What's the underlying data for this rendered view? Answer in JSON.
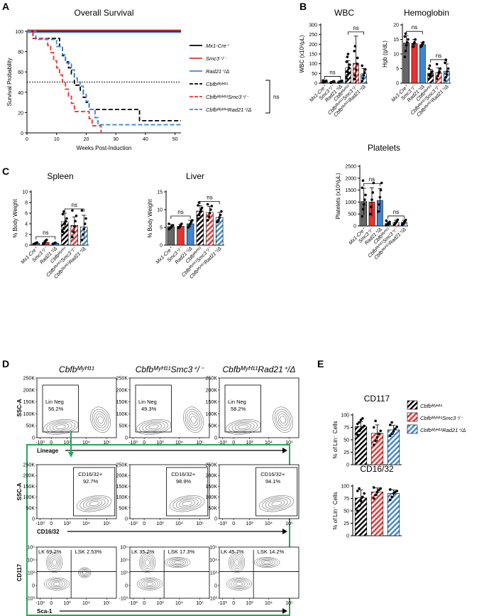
{
  "colors": {
    "black": "#000000",
    "red": "#e8322e",
    "blue": "#3f86d0",
    "gray": "#666666",
    "frame": "#2aa55a"
  },
  "panels": {
    "A": "A",
    "B": "B",
    "C": "C",
    "D": "D",
    "E": "E"
  },
  "chart_data": [
    {
      "id": "A",
      "type": "line",
      "title": "Overall Survival",
      "xlabel": "Weeks Post-Induction",
      "ylabel": "Survival Probability",
      "xlim": [
        0,
        52
      ],
      "ylim": [
        0,
        100
      ],
      "xticks": [
        "0",
        "10",
        "20",
        "30",
        "40",
        "50"
      ],
      "yticks": [
        "0",
        "20",
        "40",
        "60",
        "80",
        "100"
      ],
      "reference_line": 50,
      "legend": [
        "Mx1-Cre⁺",
        "Smc3⁺/⁻",
        "Rad21⁺/Δ",
        "Cbfbᴹʸᴴ¹¹",
        "Cbfbᴹʸᴴ¹¹Smc3⁺/⁻",
        "Cbfbᴹʸᴴ¹¹Rad21⁺/Δ"
      ],
      "annotation": "ns",
      "series": [
        {
          "name": "Mx1-Cre⁺",
          "x": [
            0,
            52
          ],
          "y": [
            100,
            100
          ]
        },
        {
          "name": "Smc3⁺/⁻",
          "x": [
            0,
            52
          ],
          "y": [
            101,
            101
          ]
        },
        {
          "name": "Rad21⁺/Δ",
          "x": [
            0,
            52
          ],
          "y": [
            99,
            99
          ]
        },
        {
          "name": "Cbfbᴹʸᴴ¹¹",
          "x": [
            0,
            2,
            5,
            8,
            10,
            11,
            12,
            13,
            14,
            15,
            16,
            18,
            19,
            20,
            21,
            22,
            27,
            37,
            38,
            52
          ],
          "y": [
            100,
            93,
            93,
            93,
            93,
            85,
            76,
            70,
            64,
            58,
            47,
            42,
            35,
            30,
            23,
            23,
            23,
            23,
            12,
            12
          ]
        },
        {
          "name": "Cbfbᴹʸᴴ¹¹Smc3⁺/⁻",
          "x": [
            0,
            2,
            3,
            7,
            8,
            9,
            10,
            11,
            12,
            13,
            14,
            15,
            16,
            17,
            19,
            21,
            22,
            23,
            24,
            25
          ],
          "y": [
            100,
            93,
            93,
            86,
            79,
            71,
            64,
            57,
            50,
            43,
            36,
            29,
            21,
            21,
            21,
            14,
            7,
            7,
            7,
            0
          ]
        },
        {
          "name": "Cbfbᴹʸᴴ¹¹Rad21⁺/Δ",
          "x": [
            0,
            3,
            7,
            10,
            12,
            13,
            14,
            15,
            16,
            17,
            18,
            19,
            20,
            21,
            22,
            23,
            24,
            25,
            52
          ],
          "y": [
            100,
            92,
            92,
            85,
            77,
            69,
            69,
            62,
            54,
            50,
            46,
            38,
            31,
            23,
            23,
            15,
            8,
            8,
            8
          ]
        }
      ]
    },
    {
      "id": "B-WBC",
      "type": "bar",
      "title": "WBC",
      "ylabel": "WBC (x10³/μL)",
      "ylim": [
        0,
        300
      ],
      "yticks": [
        "0",
        "50",
        "100",
        "150",
        "200",
        "250",
        "300"
      ],
      "categories": [
        "Mx1-Cre⁺",
        "Smc3⁺/⁻",
        "Rad21⁺/Δ",
        "Cbfbᴹʸᴴ¹¹",
        "Cbfbᴹʸᴴ¹¹Smc3⁺/⁻",
        "Cbfbᴹʸᴴ¹¹Rad21⁺/Δ"
      ],
      "values": [
        8,
        6,
        8,
        78,
        102,
        48
      ],
      "errors": [
        5,
        3,
        4,
        38,
        140,
        28
      ],
      "points": [
        [
          3,
          5,
          8,
          10,
          12,
          14
        ],
        [
          2,
          4,
          6,
          8,
          9
        ],
        [
          3,
          5,
          8,
          10,
          12
        ],
        [
          25,
          40,
          55,
          80,
          95,
          110,
          135,
          150
        ],
        [
          20,
          40,
          70,
          100,
          130,
          165,
          190
        ],
        [
          10,
          25,
          40,
          55,
          70,
          90
        ]
      ],
      "significance": [
        {
          "from": 0,
          "to": 2,
          "label": "ns"
        },
        {
          "from": 3,
          "to": 5,
          "label": "ns"
        }
      ]
    },
    {
      "id": "B-Hgb",
      "type": "bar",
      "title": "Hemoglobin",
      "ylabel": "Hgb (g/dL)",
      "ylim": [
        0,
        20
      ],
      "yticks": [
        "0",
        "5",
        "10",
        "15",
        "20"
      ],
      "categories": [
        "Mx1-Cre⁺",
        "Smc3⁺/⁻",
        "Rad21⁺/Δ",
        "Cbfbᴹʸᴴ¹¹",
        "Cbfbᴹʸᴴ¹¹Smc3⁺/⁻",
        "Cbfbᴹʸᴴ¹¹Rad21⁺/Δ"
      ],
      "values": [
        13.8,
        13.6,
        13.2,
        3.4,
        3.6,
        4.1
      ],
      "errors": [
        2.5,
        1.4,
        0.8,
        1.3,
        1.6,
        2.5
      ],
      "points": [
        [
          9,
          11,
          13,
          14,
          15,
          16,
          17
        ],
        [
          12.5,
          13.5,
          14,
          15
        ],
        [
          12.5,
          13,
          13.5,
          14
        ],
        [
          1.5,
          2.5,
          3,
          3.5,
          4,
          5,
          6
        ],
        [
          1.5,
          2.5,
          3.5,
          4,
          5,
          6.5
        ],
        [
          1,
          2,
          3,
          4,
          5,
          7,
          8
        ]
      ],
      "significance": [
        {
          "from": 0,
          "to": 2,
          "label": "ns"
        },
        {
          "from": 3,
          "to": 5,
          "label": "ns"
        }
      ]
    },
    {
      "id": "B-Platelets",
      "type": "bar",
      "title": "Platelets",
      "ylabel": "Platelets (x10³/μL)",
      "ylim": [
        0,
        2500
      ],
      "yticks": [
        "0",
        "500",
        "1000",
        "1500",
        "2000",
        "2500"
      ],
      "categories": [
        "Mx1-Cre⁺",
        "Smc3⁺/⁻",
        "Rad21⁺/Δ",
        "Cbfbᴹʸᴴ¹¹",
        "Cbfbᴹʸᴴ¹¹Smc3⁺/⁻",
        "Cbfbᴹʸᴴ¹¹Rad21⁺/Δ"
      ],
      "values": [
        1020,
        1000,
        1070,
        100,
        150,
        150
      ],
      "errors": [
        560,
        600,
        500,
        60,
        90,
        90
      ],
      "points": [
        [
          400,
          700,
          900,
          1100,
          1300,
          1600,
          1900
        ],
        [
          500,
          800,
          1100,
          1400,
          1800
        ],
        [
          600,
          900,
          1200,
          1500,
          1800
        ],
        [
          30,
          60,
          90,
          130,
          170,
          220
        ],
        [
          50,
          100,
          150,
          200,
          260
        ],
        [
          60,
          110,
          150,
          200,
          250
        ]
      ],
      "significance": [
        {
          "from": 0,
          "to": 2,
          "label": "ns"
        },
        {
          "from": 3,
          "to": 5,
          "label": "ns"
        }
      ]
    },
    {
      "id": "C-Spleen",
      "type": "bar",
      "title": "Spleen",
      "ylabel": "% Body Weight",
      "ylim": [
        0,
        10
      ],
      "yticks": [
        "0",
        "2",
        "4",
        "6",
        "8",
        "10"
      ],
      "categories": [
        "Mx1-Cre⁺",
        "Smc3⁺/⁻",
        "Rad21⁺/Δ",
        "Cbfbᴹʸᴴ¹¹",
        "Cbfbᴹʸᴴ¹¹Smc3⁺/⁻",
        "Cbfbᴹʸᴴ¹¹Rad21⁺/Δ"
      ],
      "values": [
        0.35,
        0.5,
        0.35,
        4.4,
        3.7,
        3.4
      ],
      "errors": [
        0.1,
        0.3,
        0.1,
        1.6,
        1.6,
        2.2
      ],
      "points": [
        [
          0.2,
          0.3,
          0.4,
          0.5
        ],
        [
          0.2,
          0.5,
          0.8,
          1.0
        ],
        [
          0.25,
          0.35,
          0.45
        ],
        [
          2.5,
          3.2,
          4,
          4.5,
          5,
          5.8,
          6.3
        ],
        [
          1.5,
          2.5,
          3.5,
          4.5,
          5.5,
          6.5
        ],
        [
          1,
          2,
          3,
          4,
          5,
          6.5
        ]
      ],
      "significance": [
        {
          "from": 0,
          "to": 2,
          "label": "ns"
        },
        {
          "from": 3,
          "to": 5,
          "label": "ns"
        }
      ]
    },
    {
      "id": "C-Liver",
      "type": "bar",
      "title": "Liver",
      "ylabel": "% Body Weight",
      "ylim": [
        0,
        15
      ],
      "yticks": [
        "0",
        "5",
        "10",
        "15"
      ],
      "categories": [
        "Mx1-Cre⁺",
        "Smc3⁺/⁻",
        "Rad21⁺/Δ",
        "Cbfbᴹʸᴴ¹¹",
        "Cbfbᴹʸᴴ¹¹Smc3⁺/⁻",
        "Cbfbᴹʸᴴ¹¹Rad21⁺/Δ"
      ],
      "values": [
        5.2,
        5.3,
        6.0,
        9.6,
        9.2,
        7.8
      ],
      "errors": [
        0.6,
        0.6,
        1.0,
        1.5,
        1.7,
        1.4
      ],
      "points": [
        [
          4.5,
          4.8,
          5,
          5.3,
          5.6,
          6
        ],
        [
          4.8,
          5.2,
          5.5,
          6
        ],
        [
          5,
          5.5,
          6,
          6.5,
          7
        ],
        [
          7.5,
          8.5,
          9.3,
          10,
          10.5,
          11.2,
          12
        ],
        [
          7,
          8,
          9,
          10,
          11,
          11.5
        ],
        [
          6.5,
          7,
          7.8,
          8.5,
          9.5
        ]
      ],
      "significance": [
        {
          "from": 0,
          "to": 2,
          "label": "ns"
        },
        {
          "from": 3,
          "to": 5,
          "label": "ns"
        }
      ]
    },
    {
      "id": "E-CD117",
      "type": "bar",
      "title": "CD117",
      "ylabel": "% of Lin⁻ Cells",
      "ylim": [
        0,
        100
      ],
      "yticks": [
        "0",
        "25",
        "50",
        "75",
        "100"
      ],
      "categories": [
        "Cbfbᴹʸᴴ¹¹",
        "Cbfbᴹʸᴴ¹¹Smc3⁺/⁻",
        "Cbfbᴹʸᴴ¹¹Rad21⁺/Δ"
      ],
      "values": [
        77,
        63,
        70
      ],
      "errors": [
        10,
        17,
        9
      ],
      "points": [
        [
          60,
          68,
          72,
          75,
          78,
          82,
          85,
          90,
          93
        ],
        [
          40,
          48,
          55,
          62,
          68,
          75,
          88
        ],
        [
          58,
          62,
          67,
          72,
          76,
          80,
          85
        ]
      ],
      "legend": [
        "Cbfbᴹʸᴴ¹¹",
        "Cbfbᴹʸᴴ¹¹Smc3⁺/⁻",
        "Cbfbᴹʸᴴ¹¹Rad21⁺/Δ"
      ]
    },
    {
      "id": "E-CD1632",
      "type": "bar",
      "title": "CD16/32",
      "ylabel": "% of Lin⁻ Cells",
      "ylim": [
        0,
        100
      ],
      "yticks": [
        "0",
        "25",
        "50",
        "75",
        "100"
      ],
      "categories": [
        "Cbfbᴹʸᴴ¹¹",
        "Cbfbᴹʸᴴ¹¹Smc3⁺/⁻",
        "Cbfbᴹʸᴴ¹¹Rad21⁺/Δ"
      ],
      "values": [
        76,
        88,
        85
      ],
      "errors": [
        16,
        8,
        7
      ],
      "points": [
        [
          50,
          60,
          70,
          78,
          85,
          90,
          95
        ],
        [
          75,
          82,
          88,
          92,
          95,
          97
        ],
        [
          72,
          78,
          85,
          88,
          90,
          93
        ]
      ]
    }
  ],
  "flow": {
    "columns": [
      "Cbfbᴹʸᴴ¹¹",
      "Cbfbᴹʸᴴ¹¹Smc3⁺/⁻",
      "Cbfbᴹʸᴴ¹¹Rad21⁺/Δ"
    ],
    "row1": {
      "ylabel": "SSC-A",
      "xlabel": "Lineage",
      "gate_name": "Lin Neg",
      "gates": [
        "56.2%",
        "49.3%",
        "58.2%"
      ],
      "yticks": [
        "250K",
        "200K",
        "150K",
        "100K",
        "50K",
        "0"
      ],
      "xticks": [
        "-10³",
        "0",
        "10³",
        "10⁴",
        "10⁵"
      ]
    },
    "row2": {
      "ylabel": "SSC-A",
      "xlabel": "CD16/32",
      "gate_name": "CD16/32+",
      "gates": [
        "92.7%",
        "98.9%",
        "94.1%"
      ],
      "yticks": [
        "250K",
        "200K",
        "150K",
        "100K",
        "50K",
        "0"
      ],
      "xticks": [
        "-10³",
        "0",
        "10³",
        "10⁴",
        "10⁵"
      ]
    },
    "row3": {
      "ylabel": "CD117",
      "xlabel": "Sca-1",
      "lk": [
        "LK 69.2%",
        "LK 35.2%",
        "LK 45.7%"
      ],
      "lsk": [
        "LSK 2.53%",
        "LSK 17.3%",
        "LSK 14.2%"
      ],
      "yticks": [
        "10⁵",
        "10⁴",
        "10³",
        "0",
        "-10³"
      ],
      "xticks": [
        "-10³",
        "0",
        "10³",
        "10⁴",
        "10⁵"
      ]
    }
  }
}
